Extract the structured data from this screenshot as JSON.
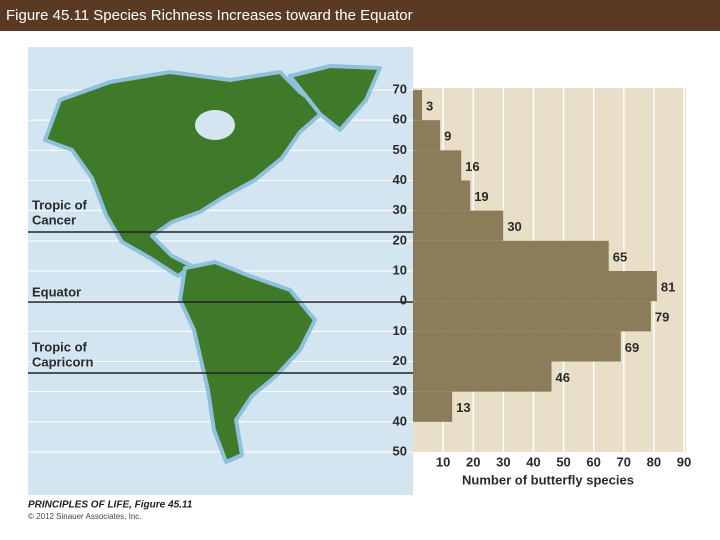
{
  "header": {
    "title": "Figure 45.11  Species Richness Increases toward the Equator"
  },
  "chart_data": {
    "type": "histogram",
    "orientation": "horizontal",
    "bins": [
      70,
      60,
      50,
      40,
      30,
      20,
      10,
      0,
      -10,
      -20,
      -30,
      -40
    ],
    "values": [
      3,
      9,
      16,
      19,
      30,
      65,
      81,
      79,
      69,
      46,
      13
    ],
    "color": "#8c7d5a",
    "xlabel": "Number of butterfly species",
    "xlim": [
      0,
      90
    ],
    "xticks": [
      10,
      20,
      30,
      40,
      50,
      60,
      70,
      80,
      90
    ],
    "ylim": [
      -50,
      70
    ],
    "yticks": [
      70,
      60,
      50,
      40,
      30,
      20,
      10,
      0,
      {
        "value": -10,
        "label": "10"
      },
      {
        "value": -20,
        "label": "20"
      },
      {
        "value": -30,
        "label": "30"
      },
      {
        "value": -40,
        "label": "40"
      },
      {
        "value": -50,
        "label": "50"
      }
    ],
    "grid": true,
    "annotations": {
      "tropic_of_cancer": [
        "Tropic of",
        "Cancer"
      ],
      "equator": "Equator",
      "tropic_of_capricorn": [
        "Tropic of",
        "Capricorn"
      ]
    }
  },
  "footer": {
    "book": "PRINCIPLES OF LIFE, Figure 45.11",
    "copyright": "© 2012 Sinauer Associates, Inc."
  }
}
